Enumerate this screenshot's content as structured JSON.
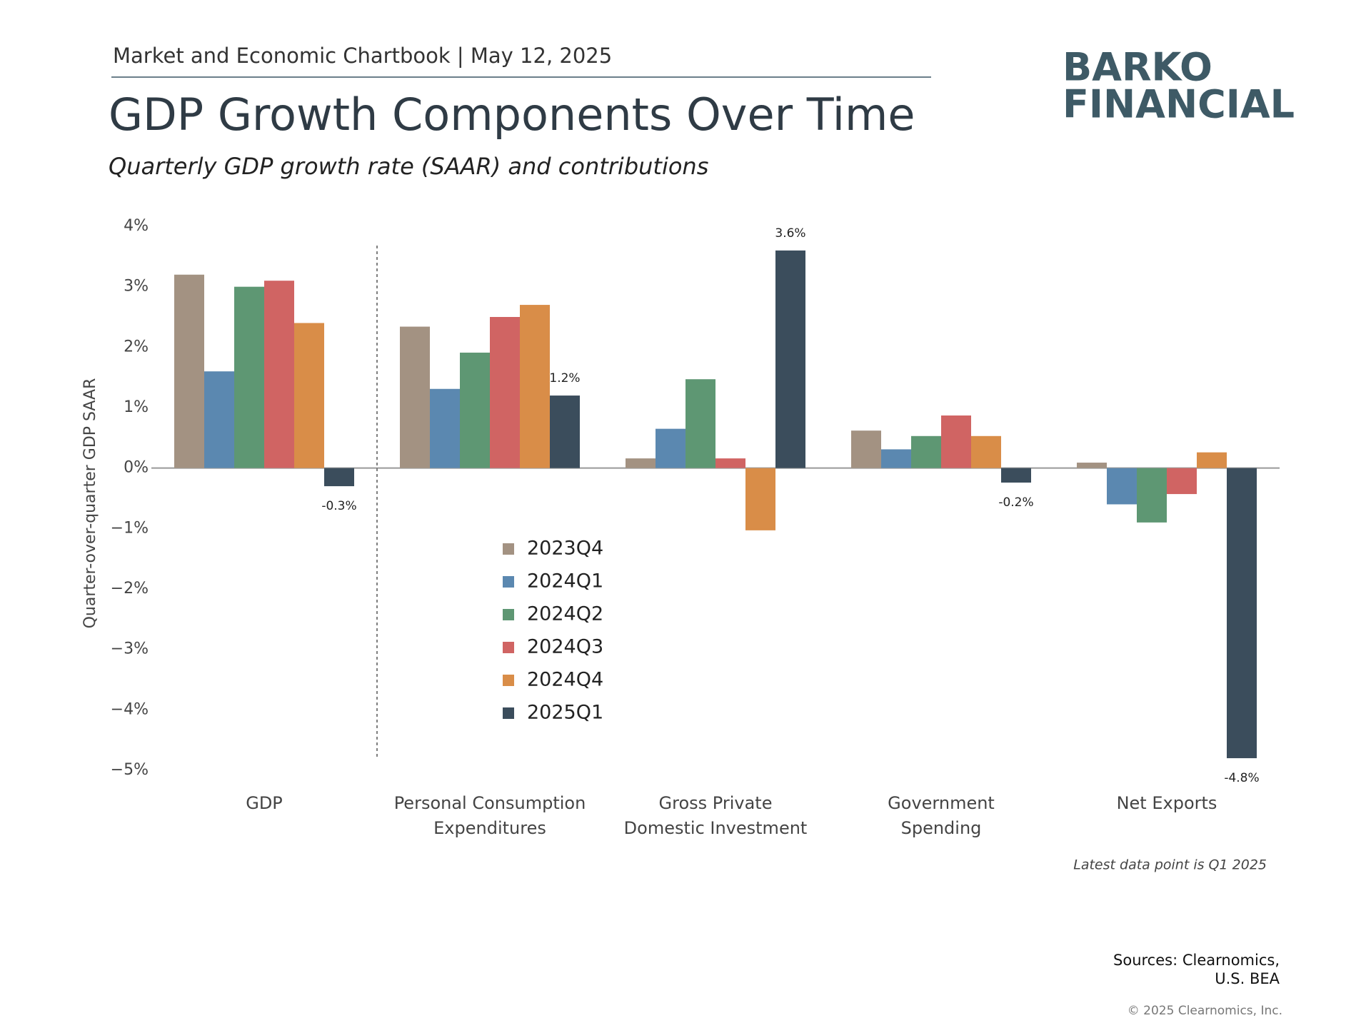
{
  "header": "Market and Economic Chartbook | May 12, 2025",
  "logo": [
    "BARKO",
    "FINANCIAL"
  ],
  "chart_data": {
    "type": "bar",
    "title": "GDP Growth Components Over Time",
    "subtitle": "Quarterly GDP growth rate (SAAR) and contributions",
    "y_label": "Quarter-over-quarter GDP SAAR",
    "categories": [
      "GDP",
      "Personal Consumption\nExpenditures",
      "Gross Private\nDomestic Investment",
      "Government\nSpending",
      "Net Exports"
    ],
    "series": [
      {
        "name": "2023Q4",
        "color": "#a39282",
        "values": [
          3.2,
          2.34,
          0.16,
          0.62,
          0.09
        ]
      },
      {
        "name": "2024Q1",
        "color": "#5b88b0",
        "values": [
          1.6,
          1.31,
          0.65,
          0.31,
          -0.6
        ]
      },
      {
        "name": "2024Q2",
        "color": "#5e9773",
        "values": [
          3.0,
          1.91,
          1.47,
          0.53,
          -0.9
        ]
      },
      {
        "name": "2024Q3",
        "color": "#d06463",
        "values": [
          3.1,
          2.5,
          0.16,
          0.87,
          -0.43
        ]
      },
      {
        "name": "2024Q4",
        "color": "#d98d48",
        "values": [
          2.4,
          2.7,
          -1.03,
          0.53,
          0.26
        ]
      },
      {
        "name": "2025Q1",
        "color": "#3b4d5c",
        "values": [
          -0.3,
          1.2,
          3.6,
          -0.24,
          -4.8
        ],
        "value_labels": [
          "-0.3%",
          "1.2%",
          "3.6%",
          "-0.2%",
          "-4.8%"
        ]
      }
    ],
    "ylim": [
      -5,
      4
    ],
    "yticks": [
      {
        "value": 4,
        "label": "4%"
      },
      {
        "value": 3,
        "label": "3%"
      },
      {
        "value": 2,
        "label": "2%"
      },
      {
        "value": 1,
        "label": "1%"
      },
      {
        "value": 0,
        "label": "0%"
      },
      {
        "value": -1,
        "label": "−1%"
      },
      {
        "value": -2,
        "label": "−2%"
      },
      {
        "value": -3,
        "label": "−3%"
      },
      {
        "value": -4,
        "label": "−4%"
      },
      {
        "value": -5,
        "label": "−5%"
      }
    ],
    "grid": false,
    "note": "Latest data point is Q1 2025"
  },
  "sources": "Sources: Clearnomics,\nU.S. BEA",
  "copyright": "© 2025 Clearnomics, Inc."
}
